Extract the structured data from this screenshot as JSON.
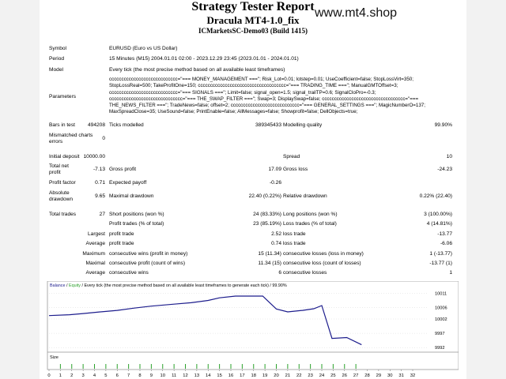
{
  "watermark": "www.mt4.shop",
  "header": {
    "title": "Strategy Tester Report",
    "ea_name": "Dracula MT4-1.0_fix",
    "account": "ICMarketsSC-Demo03 (Build 1415)"
  },
  "info": {
    "symbol_label": "Symbol",
    "symbol": "EURUSD (Euro vs US Dollar)",
    "period_label": "Period",
    "period": "15 Minutes (M15) 2004.01.01 02:00 - 2023.12.29 23:45 (2023.01.01 - 2024.01.01)",
    "model_label": "Model",
    "model": "Every tick (the most precise method based on all available least timeframes)",
    "parameters_label": "Parameters",
    "parameters": [
      "cccccccccccccccccccccccccccc=\"=== MONEY_MANAGEMENT ===\"; Risk_Lot=0.01; lotstep=0.01; UseCoefficient=false; StopLossVirt=350;",
      "StopLossReal=500; TakeProfitOne=150; cccccccccccccccccccccccccccccccccccc=\"=== TRADING_TIME ===\"; ManualGMTOffset=3;",
      "cccccccccccccccccccccccccccc=\"=== SIGNALS ===\"; Limit=false; signal_open=1.5; signal_trailTP=0.6; SignalCloPro=-0.3;",
      "cccccccccccccccccccccccccccccc=\"=== THE_SWAP_FILTER ===\"; Swap=3; DisplaySwap=false; cccccccccccccccccccccccccccccccccc=\"===",
      "THE_NEWS_FILTER ===\"; TradeNews=false; offset=2; cccccccccccccccccccccccccccc=\"=== GENERAL_SETTINGS ===\"; MagicNumberO=137;",
      "MaxSpreadClose=35; UseSound=false; PrintEnable=false; AllMessages=false; Showprofit=false; DellObjects=true;"
    ]
  },
  "stats": {
    "bars_label": "Bars in test",
    "bars": "494208",
    "ticks_label": "Ticks modelled",
    "ticks": "389345433",
    "quality_label": "Modelling quality",
    "quality": "99.90%",
    "mismatched_label": "Mismatched charts errors",
    "mismatched": "0",
    "initial_deposit_label": "Initial deposit",
    "initial_deposit": "10000.00",
    "spread_label": "Spread",
    "spread": "10",
    "net_profit_label": "Total net profit",
    "net_profit": "-7.13",
    "gross_profit_label": "Gross profit",
    "gross_profit": "17.09",
    "gross_loss_label": "Gross loss",
    "gross_loss": "-24.23",
    "profit_factor_label": "Profit factor",
    "profit_factor": "0.71",
    "expected_payoff_label": "Expected payoff",
    "expected_payoff": "-0.26",
    "abs_drawdown_label": "Absolute drawdown",
    "abs_drawdown": "9.65",
    "max_drawdown_label": "Maximal drawdown",
    "max_drawdown": "22.40 (0.22%)",
    "rel_drawdown_label": "Relative drawdown",
    "rel_drawdown": "0.22% (22.40)",
    "total_trades_label": "Total trades",
    "total_trades": "27",
    "short_label": "Short positions (won %)",
    "short": "24 (83.33%)",
    "long_label": "Long positions (won %)",
    "long": "3 (100.00%)",
    "profit_trades_label": "Profit trades (% of total)",
    "profit_trades": "23 (85.19%)",
    "loss_trades_label": "Loss trades (% of total)",
    "loss_trades": "4 (14.81%)",
    "largest_label": "Largest",
    "largest_profit_label": "profit trade",
    "largest_profit": "2.52",
    "largest_loss_label": "loss trade",
    "largest_loss": "-13.77",
    "average_label": "Average",
    "average_profit_label": "profit trade",
    "average_profit": "0.74",
    "average_loss_label": "loss trade",
    "average_loss": "-6.06",
    "maximum_label": "Maximum",
    "max_cons_wins_label": "consecutive wins (profit in money)",
    "max_cons_wins": "15 (11.34)",
    "max_cons_losses_label": "consecutive losses (loss in money)",
    "max_cons_losses": "1 (-13.77)",
    "maximal_label": "Maximal",
    "maximal_cons_profit_label": "consecutive profit (count of wins)",
    "maximal_cons_profit": "11.34 (15)",
    "maximal_cons_loss_label": "consecutive loss (count of losses)",
    "maximal_cons_loss": "-13.77 (1)",
    "avg_cons_label": "Average",
    "avg_cons_wins_label": "consecutive wins",
    "avg_cons_wins": "6",
    "avg_cons_losses_label": "consecutive losses",
    "avg_cons_losses": "1"
  },
  "chart_data": {
    "type": "line",
    "legend_balance": "Balance",
    "legend_sep1": " / ",
    "legend_equity": "Equity",
    "legend_rest": " / Every tick (the most precise method based on all available least timeframes to generate each tick) / 99.90%",
    "balance_color": "#1c1c8c",
    "equity_color": "#2aa02a",
    "x": [
      0,
      1.8,
      3,
      4.5,
      6,
      7.5,
      9,
      11,
      12.5,
      14,
      15,
      16.4,
      18.8,
      20,
      21,
      22.3,
      23.3,
      24,
      24.9,
      26.2,
      27.5
    ],
    "balance": [
      10003.2,
      10003.5,
      10003.9,
      10004.5,
      10005.0,
      10005.8,
      10006.5,
      10007.2,
      10007.7,
      10008.5,
      10009.4,
      10010.0,
      10010.0,
      10005.5,
      10004.5,
      10005.0,
      10005.6,
      10006.7,
      9995.2,
      9995.5,
      9993.0
    ],
    "yticks": [
      "10011",
      "10006",
      "10002",
      "9997",
      "9992"
    ],
    "ytick_values": [
      10011,
      10006,
      10002,
      9997,
      9992
    ],
    "ylim": [
      9991.5,
      10012.5
    ],
    "xlim": [
      0,
      32
    ],
    "xticks": [
      "0",
      "1",
      "2",
      "3",
      "4",
      "5",
      "6",
      "7",
      "8",
      "9",
      "10",
      "11",
      "12",
      "13",
      "14",
      "15",
      "16",
      "17",
      "18",
      "19",
      "20",
      "21",
      "22",
      "23",
      "24",
      "25",
      "26",
      "27",
      "28",
      "29",
      "30",
      "31",
      "32"
    ],
    "size_label": "Size",
    "size_bars_x": [
      1,
      2,
      3,
      4,
      5,
      6,
      7,
      8,
      9,
      10,
      11,
      12,
      13,
      14,
      15,
      16,
      17,
      18,
      19,
      20,
      21,
      22,
      23,
      24,
      25,
      26,
      27
    ]
  }
}
